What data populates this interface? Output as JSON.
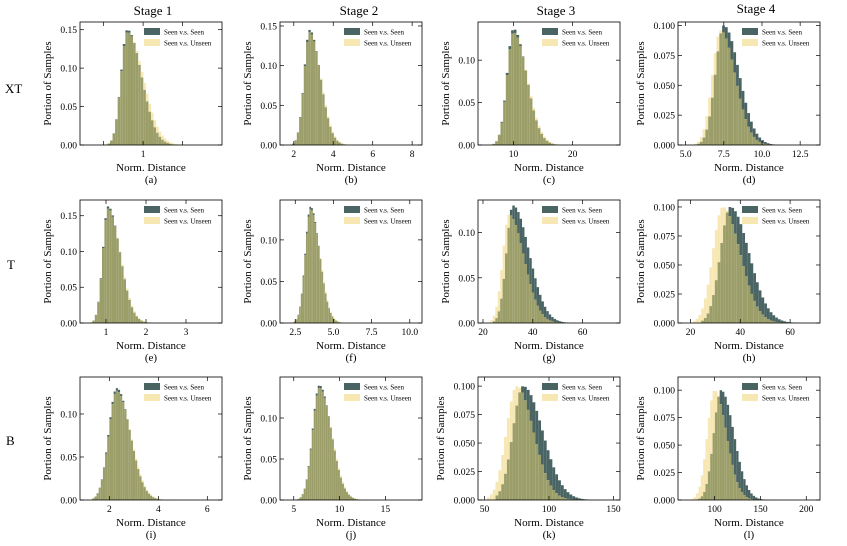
{
  "stages": [
    "Stage 1",
    "Stage 2",
    "Stage 3",
    "Stage 4"
  ],
  "rows": [
    "XT",
    "T",
    "B"
  ],
  "legend": {
    "seen": "Seen v.s. Seen",
    "unseen": "Seen v.s. Unseen"
  },
  "colors": {
    "seen": "#4a6464",
    "unseen": "#f7e7b3",
    "overlap": "#9b9e68"
  },
  "ylabel": "Portion of Samples",
  "xlabel": "Norm. Distance",
  "chart_data": [
    {
      "type": "bar",
      "letter": "(a)",
      "row": "XT",
      "stage": "Stage 1",
      "xlabel": "Norm. Distance",
      "ylabel": "Portion of Samples",
      "xlim": [
        0.2,
        2.0
      ],
      "ylim": [
        0,
        0.16
      ],
      "xticks": [
        0.5,
        1.0,
        1.5
      ],
      "xticklabels": [
        "",
        "1",
        ""
      ],
      "yticks": [
        0,
        0.05,
        0.1,
        0.15
      ],
      "yticklabels": [
        "0.00",
        "0.05",
        "0.10",
        "0.15"
      ],
      "series": [
        {
          "name": "Seen v.s. Seen",
          "dist": {
            "peak": 0.8,
            "sdL": 0.08,
            "sdR": 0.18,
            "height": 0.15,
            "min": 0.45,
            "max": 1.7
          }
        },
        {
          "name": "Seen v.s. Unseen",
          "dist": {
            "peak": 0.8,
            "sdL": 0.08,
            "sdR": 0.2,
            "height": 0.147,
            "min": 0.45,
            "max": 1.75
          }
        }
      ]
    },
    {
      "type": "bar",
      "letter": "(b)",
      "row": "XT",
      "stage": "Stage 2",
      "xlabel": "Norm. Distance",
      "ylabel": "Portion of Samples",
      "xlim": [
        1.3,
        8.5
      ],
      "ylim": [
        0,
        0.155
      ],
      "xticks": [
        2,
        4,
        6,
        8
      ],
      "xticklabels": [
        "2",
        "4",
        "6",
        "8"
      ],
      "yticks": [
        0,
        0.05,
        0.1,
        0.15
      ],
      "yticklabels": [
        "0.00",
        "0.05",
        "0.10",
        "0.15"
      ],
      "series": [
        {
          "name": "Seen v.s. Seen",
          "dist": {
            "peak": 2.8,
            "sdL": 0.28,
            "sdR": 0.55,
            "height": 0.145,
            "min": 1.8,
            "max": 6.5
          }
        },
        {
          "name": "Seen v.s. Unseen",
          "dist": {
            "peak": 2.8,
            "sdL": 0.28,
            "sdR": 0.57,
            "height": 0.142,
            "min": 1.8,
            "max": 6.5
          }
        }
      ]
    },
    {
      "type": "bar",
      "letter": "(c)",
      "row": "XT",
      "stage": "Stage 3",
      "xlabel": "Norm. Distance",
      "ylabel": "Portion of Samples",
      "xlim": [
        4,
        28
      ],
      "ylim": [
        0,
        0.145
      ],
      "xticks": [
        10,
        20
      ],
      "xticklabels": [
        "10",
        "20"
      ],
      "yticks": [
        0,
        0.05,
        0.1
      ],
      "yticklabels": [
        "0.00",
        "0.05",
        "0.10"
      ],
      "series": [
        {
          "name": "Seen v.s. Seen",
          "dist": {
            "peak": 10,
            "sdL": 1.1,
            "sdR": 2.2,
            "height": 0.137,
            "min": 6,
            "max": 24
          }
        },
        {
          "name": "Seen v.s. Unseen",
          "dist": {
            "peak": 10,
            "sdL": 1.1,
            "sdR": 2.3,
            "height": 0.133,
            "min": 6,
            "max": 24
          }
        }
      ]
    },
    {
      "type": "bar",
      "letter": "(d)",
      "row": "XT",
      "stage": "Stage 4",
      "xlabel": "Norm. Distance",
      "ylabel": "Portion of Samples",
      "xlim": [
        4.5,
        13.8
      ],
      "ylim": [
        0,
        0.103
      ],
      "xticks": [
        5,
        7.5,
        10,
        12.5
      ],
      "xticklabels": [
        "5.0",
        "7.5",
        "10.0",
        "12.5"
      ],
      "yticks": [
        0,
        0.025,
        0.05,
        0.075,
        0.1
      ],
      "yticklabels": [
        "0.000",
        "0.025",
        "0.050",
        "0.075",
        "0.100"
      ],
      "series": [
        {
          "name": "Seen v.s. Seen",
          "dist": {
            "peak": 7.5,
            "sdL": 0.55,
            "sdR": 1.0,
            "height": 0.1,
            "min": 5.3,
            "max": 12.5
          }
        },
        {
          "name": "Seen v.s. Unseen",
          "dist": {
            "peak": 7.3,
            "sdL": 0.55,
            "sdR": 0.95,
            "height": 0.096,
            "min": 5.2,
            "max": 12.3
          }
        }
      ]
    },
    {
      "type": "bar",
      "letter": "(e)",
      "row": "T",
      "stage": "Stage 1",
      "xlabel": "Norm. Distance",
      "ylabel": "Portion of Samples",
      "xlim": [
        0.35,
        3.9
      ],
      "ylim": [
        0,
        0.172
      ],
      "xticks": [
        1,
        2,
        3
      ],
      "xticklabels": [
        "1",
        "2",
        "3"
      ],
      "yticks": [
        0,
        0.05,
        0.1,
        0.15
      ],
      "yticklabels": [
        "0.00",
        "0.05",
        "0.10",
        "0.15"
      ],
      "series": [
        {
          "name": "Seen v.s. Seen",
          "dist": {
            "peak": 1.05,
            "sdL": 0.13,
            "sdR": 0.3,
            "height": 0.163,
            "min": 0.6,
            "max": 3.0
          }
        },
        {
          "name": "Seen v.s. Unseen",
          "dist": {
            "peak": 1.05,
            "sdL": 0.13,
            "sdR": 0.31,
            "height": 0.16,
            "min": 0.6,
            "max": 3.0
          }
        }
      ]
    },
    {
      "type": "bar",
      "letter": "(f)",
      "row": "T",
      "stage": "Stage 2",
      "xlabel": "Norm. Distance",
      "ylabel": "Portion of Samples",
      "xlim": [
        1.5,
        10.8
      ],
      "ylim": [
        0,
        0.148
      ],
      "xticks": [
        2.5,
        5,
        7.5,
        10
      ],
      "xticklabels": [
        "2.5",
        "5.0",
        "7.5",
        "10.0"
      ],
      "yticks": [
        0,
        0.05,
        0.1
      ],
      "yticklabels": [
        "0.00",
        "0.05",
        "0.10"
      ],
      "series": [
        {
          "name": "Seen v.s. Seen",
          "dist": {
            "peak": 3.5,
            "sdL": 0.35,
            "sdR": 0.6,
            "height": 0.14,
            "min": 2.3,
            "max": 6.8
          }
        },
        {
          "name": "Seen v.s. Unseen",
          "dist": {
            "peak": 3.5,
            "sdL": 0.35,
            "sdR": 0.62,
            "height": 0.137,
            "min": 2.3,
            "max": 6.8
          }
        }
      ]
    },
    {
      "type": "bar",
      "letter": "(g)",
      "row": "T",
      "stage": "Stage 3",
      "xlabel": "Norm. Distance",
      "ylabel": "Portion of Samples",
      "xlim": [
        18,
        75
      ],
      "ylim": [
        0,
        0.136
      ],
      "xticks": [
        20,
        40,
        60
      ],
      "xticklabels": [
        "20",
        "40",
        "60"
      ],
      "yticks": [
        0,
        0.05,
        0.1
      ],
      "yticklabels": [
        "0.00",
        "0.05",
        "0.10"
      ],
      "series": [
        {
          "name": "Seen v.s. Seen",
          "dist": {
            "peak": 32,
            "sdL": 2.6,
            "sdR": 6.5,
            "height": 0.13,
            "min": 24,
            "max": 62
          }
        },
        {
          "name": "Seen v.s. Unseen",
          "dist": {
            "peak": 30.5,
            "sdL": 2.6,
            "sdR": 6.0,
            "height": 0.12,
            "min": 23,
            "max": 60
          }
        }
      ]
    },
    {
      "type": "bar",
      "letter": "(h)",
      "row": "T",
      "stage": "Stage 4",
      "xlabel": "Norm. Distance",
      "ylabel": "Portion of Samples",
      "xlim": [
        15,
        72
      ],
      "ylim": [
        0,
        0.106
      ],
      "xticks": [
        20,
        40,
        60
      ],
      "xticklabels": [
        "20",
        "40",
        "60"
      ],
      "yticks": [
        0,
        0.025,
        0.05,
        0.075,
        0.1
      ],
      "yticklabels": [
        "0.000",
        "0.025",
        "0.050",
        "0.075",
        "0.100"
      ],
      "series": [
        {
          "name": "Seen v.s. Seen",
          "dist": {
            "peak": 36,
            "sdL": 4,
            "sdR": 7.5,
            "height": 0.1,
            "min": 24,
            "max": 65
          }
        },
        {
          "name": "Seen v.s. Unseen",
          "dist": {
            "peak": 33,
            "sdL": 4,
            "sdR": 7,
            "height": 0.1,
            "min": 21,
            "max": 62
          }
        }
      ]
    },
    {
      "type": "bar",
      "letter": "(i)",
      "row": "B",
      "stage": "Stage 1",
      "xlabel": "Norm. Distance",
      "ylabel": "Portion of Samples",
      "xlim": [
        0.8,
        6.6
      ],
      "ylim": [
        0,
        0.143
      ],
      "xticks": [
        2,
        4,
        6
      ],
      "xticklabels": [
        "2",
        "4",
        "6"
      ],
      "yticks": [
        0,
        0.05,
        0.1
      ],
      "yticklabels": [
        "0.00",
        "0.05",
        "0.10"
      ],
      "series": [
        {
          "name": "Seen v.s. Seen",
          "dist": {
            "peak": 2.3,
            "sdL": 0.33,
            "sdR": 0.55,
            "height": 0.13,
            "min": 1.3,
            "max": 4.8
          }
        },
        {
          "name": "Seen v.s. Unseen",
          "dist": {
            "peak": 2.3,
            "sdL": 0.33,
            "sdR": 0.57,
            "height": 0.127,
            "min": 1.3,
            "max": 4.8
          }
        }
      ]
    },
    {
      "type": "bar",
      "letter": "(j)",
      "row": "B",
      "stage": "Stage 2",
      "xlabel": "Norm. Distance",
      "ylabel": "Portion of Samples",
      "xlim": [
        3.5,
        19
      ],
      "ylim": [
        0,
        0.15
      ],
      "xticks": [
        5,
        10,
        15
      ],
      "xticklabels": [
        "5",
        "10",
        "15"
      ],
      "yticks": [
        0,
        0.05,
        0.1
      ],
      "yticklabels": [
        "0.00",
        "0.05",
        "0.10"
      ],
      "series": [
        {
          "name": "Seen v.s. Seen",
          "dist": {
            "peak": 7.8,
            "sdL": 0.75,
            "sdR": 1.3,
            "height": 0.14,
            "min": 5.2,
            "max": 14
          }
        },
        {
          "name": "Seen v.s. Unseen",
          "dist": {
            "peak": 7.8,
            "sdL": 0.75,
            "sdR": 1.35,
            "height": 0.137,
            "min": 5.2,
            "max": 14
          }
        }
      ]
    },
    {
      "type": "bar",
      "letter": "(k)",
      "row": "B",
      "stage": "Stage 3",
      "xlabel": "Norm. Distance",
      "ylabel": "Portion of Samples",
      "xlim": [
        45,
        155
      ],
      "ylim": [
        0,
        0.108
      ],
      "xticks": [
        50,
        100,
        150
      ],
      "xticklabels": [
        "50",
        "100",
        "150"
      ],
      "yticks": [
        0,
        0.025,
        0.05,
        0.075,
        0.1
      ],
      "yticklabels": [
        "0.000",
        "0.025",
        "0.050",
        "0.075",
        "0.100"
      ],
      "series": [
        {
          "name": "Seen v.s. Seen",
          "dist": {
            "peak": 80,
            "sdL": 8,
            "sdR": 15,
            "height": 0.1,
            "min": 58,
            "max": 140
          }
        },
        {
          "name": "Seen v.s. Unseen",
          "dist": {
            "peak": 75,
            "sdL": 8,
            "sdR": 13,
            "height": 0.1,
            "min": 52,
            "max": 132
          }
        }
      ]
    },
    {
      "type": "bar",
      "letter": "(l)",
      "row": "B",
      "stage": "Stage 4",
      "xlabel": "Norm. Distance",
      "ylabel": "Portion of Samples",
      "xlim": [
        60,
        215
      ],
      "ylim": [
        0,
        0.112
      ],
      "xticks": [
        100,
        150,
        200
      ],
      "xticklabels": [
        "100",
        "150",
        "200"
      ],
      "yticks": [
        0,
        0.025,
        0.05,
        0.075,
        0.1
      ],
      "yticklabels": [
        "0.000",
        "0.025",
        "0.050",
        "0.075",
        "0.100"
      ],
      "series": [
        {
          "name": "Seen v.s. Seen",
          "dist": {
            "peak": 107,
            "sdL": 8,
            "sdR": 14,
            "height": 0.1,
            "min": 80,
            "max": 175
          }
        },
        {
          "name": "Seen v.s. Unseen",
          "dist": {
            "peak": 100,
            "sdL": 8,
            "sdR": 13,
            "height": 0.1,
            "min": 72,
            "max": 165
          }
        }
      ]
    }
  ]
}
